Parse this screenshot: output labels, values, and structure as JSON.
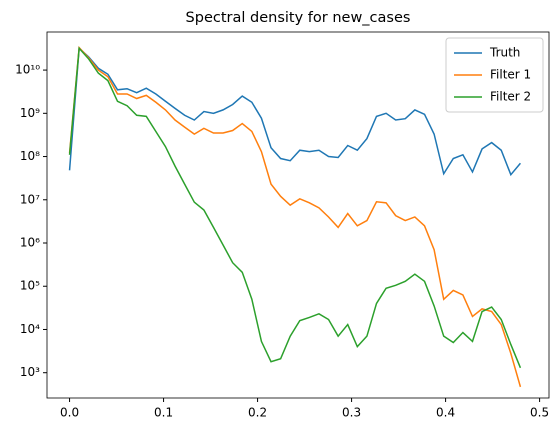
{
  "chart_data": {
    "type": "line",
    "title": "Spectral density for new_cases",
    "x": [
      0,
      0.0102,
      0.0204,
      0.0306,
      0.0408,
      0.051,
      0.0612,
      0.0714,
      0.0816,
      0.0918,
      0.102,
      0.1122,
      0.1224,
      0.1327,
      0.1429,
      0.1531,
      0.1633,
      0.1735,
      0.1837,
      0.1939,
      0.2041,
      0.2143,
      0.2245,
      0.2347,
      0.2449,
      0.2551,
      0.2653,
      0.2755,
      0.2857,
      0.2959,
      0.3061,
      0.3163,
      0.3265,
      0.3367,
      0.3469,
      0.3571,
      0.3673,
      0.3776,
      0.3878,
      0.398,
      0.4082,
      0.4184,
      0.4286,
      0.4388,
      0.449,
      0.4592,
      0.4694,
      0.4796
    ],
    "series": [
      {
        "name": "Truth",
        "color": "#1f77b4",
        "values": [
          48000000.0,
          32000000000.0,
          20000000000.0,
          11000000000.0,
          8000000000.0,
          3500000000.0,
          3700000000.0,
          3000000000.0,
          3800000000.0,
          2800000000.0,
          1900000000.0,
          1300000000.0,
          900000000.0,
          700000000.0,
          1100000000.0,
          1000000000.0,
          1200000000.0,
          1600000000.0,
          2500000000.0,
          1800000000.0,
          770000000.0,
          160000000.0,
          90000000.0,
          80000000.0,
          140000000.0,
          130000000.0,
          140000000.0,
          100000000.0,
          95000000.0,
          180000000.0,
          140000000.0,
          260000000.0,
          850000000.0,
          1000000000.0,
          700000000.0,
          750000000.0,
          1200000000.0,
          950000000.0,
          330000000.0,
          40000000.0,
          90000000.0,
          110000000.0,
          44000000.0,
          150000000.0,
          210000000.0,
          140000000.0,
          38000000.0,
          70000000.0
        ]
      },
      {
        "name": "Filter 1",
        "color": "#ff7f0e",
        "values": [
          120000000.0,
          33000000000.0,
          19000000000.0,
          10000000000.0,
          7000000000.0,
          2800000000.0,
          2800000000.0,
          2200000000.0,
          2600000000.0,
          1800000000.0,
          1200000000.0,
          700000000.0,
          480000000.0,
          330000000.0,
          450000000.0,
          350000000.0,
          350000000.0,
          400000000.0,
          580000000.0,
          380000000.0,
          130000000.0,
          23000000.0,
          12000000.0,
          7500000.0,
          10500000.0,
          8500000.0,
          6500000.0,
          4000000.0,
          2300000.0,
          4800000.0,
          2500000.0,
          3300000.0,
          9000000.0,
          8500000.0,
          4300000.0,
          3300000.0,
          4000000.0,
          2500000.0,
          700000.0,
          50000.0,
          80000.0,
          63000.0,
          20000.0,
          30000.0,
          26000.0,
          13000.0,
          2800,
          470
        ]
      },
      {
        "name": "Filter 2",
        "color": "#2ca02c",
        "values": [
          110000000.0,
          32000000000.0,
          18000000000.0,
          8500000000.0,
          5700000000.0,
          1900000000.0,
          1500000000.0,
          900000000.0,
          850000000.0,
          380000000.0,
          170000000.0,
          60000000.0,
          23000000.0,
          8800000.0,
          5800000.0,
          2300000.0,
          900000.0,
          350000.0,
          210000.0,
          50000.0,
          5300,
          1800,
          2100,
          7000,
          16000.0,
          19000.0,
          23000.0,
          17000.0,
          7000,
          13000.0,
          4000,
          7000,
          40000.0,
          90000.0,
          105000.0,
          130000.0,
          190000.0,
          130000.0,
          35000.0,
          7000,
          5000,
          8500,
          5300,
          26000.0,
          33000.0,
          17000.0,
          4500,
          1300
        ]
      }
    ],
    "xlim": [
      -0.024,
      0.51
    ],
    "xticks": [
      {
        "value": 0,
        "label": "0.0"
      },
      0.1,
      0.2,
      0.3,
      0.4,
      0.5
    ],
    "ylim": [
      260,
      76000000000.0
    ],
    "log_y": true,
    "yticks": [
      {
        "value": 1000,
        "label": "10³"
      },
      {
        "value": 10000,
        "label": "10⁴"
      },
      {
        "value": 100000,
        "label": "10⁵"
      },
      {
        "value": 1000000,
        "label": "10⁶"
      },
      {
        "value": 10000000,
        "label": "10⁷"
      },
      {
        "value": 100000000,
        "label": "10⁸"
      },
      {
        "value": 1000000000,
        "label": "10⁹"
      },
      {
        "value": 10000000000,
        "label": "10¹⁰"
      }
    ],
    "legend": "upper right"
  }
}
